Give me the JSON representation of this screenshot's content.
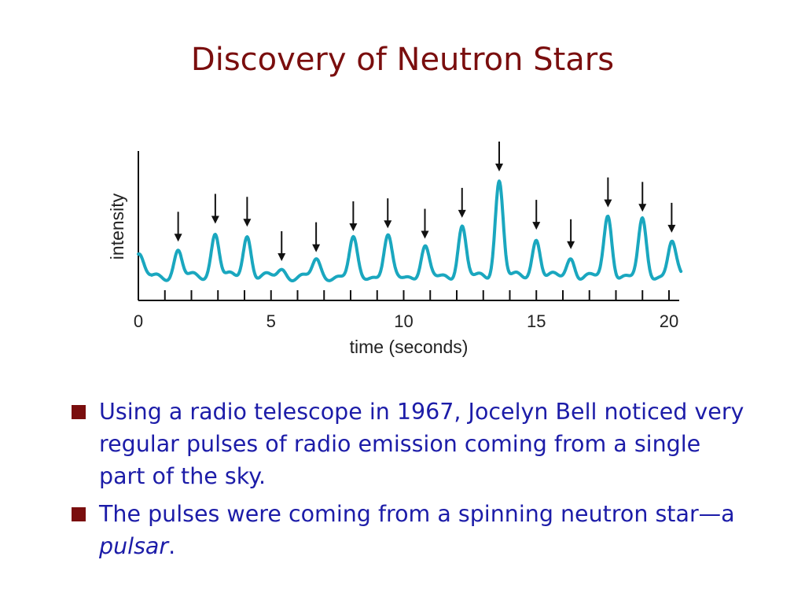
{
  "slide": {
    "title": "Discovery of Neutron Stars",
    "colors": {
      "title": "#7a0e0e",
      "bullet_text": "#1c1ca8",
      "bullet_marker": "#7a0e0e",
      "trace": "#1aa7bf"
    },
    "bullets": [
      {
        "parts": [
          "Using a radio telescope in 1967, Jocelyn Bell noticed very regular pulses of radio emission coming from a single part of the sky."
        ]
      },
      {
        "parts": [
          "The pulses were coming from a spinning neutron star—a ",
          "pulsar",
          "."
        ]
      }
    ]
  },
  "chart_data": {
    "type": "line",
    "xlabel": "time (seconds)",
    "ylabel": "intensity",
    "xlim": [
      0,
      20.5
    ],
    "ylim": [
      0,
      1
    ],
    "x_ticks": [
      0,
      5,
      10,
      15,
      20
    ],
    "x_tick_labels": [
      "0",
      "5",
      "10",
      "15",
      "20"
    ],
    "minor_tick_step": 1,
    "baseline": 0.16,
    "series": [
      {
        "pulse_times": [
          1.5,
          2.9,
          4.1,
          5.4,
          6.7,
          8.1,
          9.4,
          10.8,
          12.2,
          13.6,
          15.0,
          16.3,
          17.7,
          19.0,
          20.1
        ],
        "pulse_heights": [
          0.33,
          0.45,
          0.43,
          0.2,
          0.26,
          0.4,
          0.42,
          0.35,
          0.49,
          0.8,
          0.41,
          0.28,
          0.56,
          0.53,
          0.39
        ],
        "arrows_marking_pulses": true
      }
    ]
  }
}
